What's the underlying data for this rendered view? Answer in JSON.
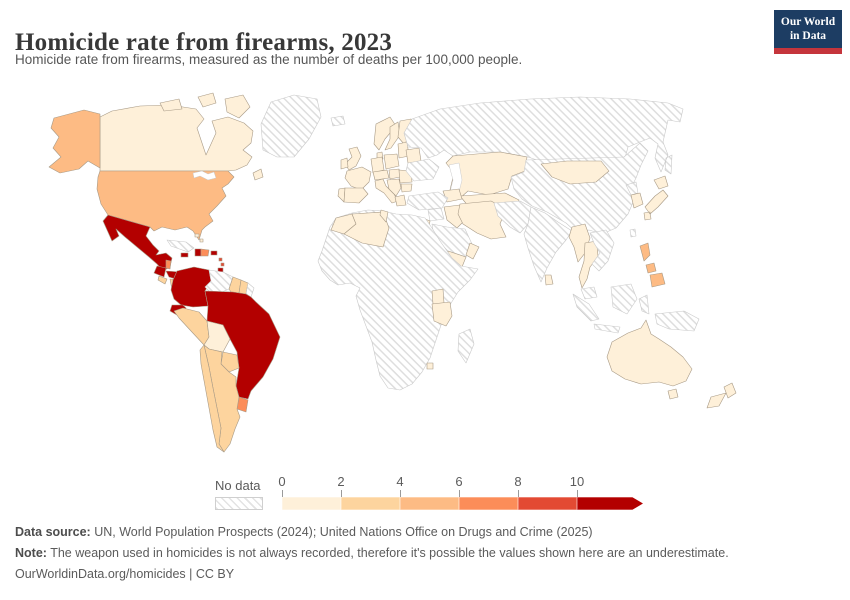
{
  "header": {
    "title": "Homicide rate from firearms, 2023",
    "subtitle": "Homicide rate from firearms, measured as the number of deaths per 100,000 people.",
    "logo": {
      "line1": "Our World",
      "line2": "in Data",
      "bg_color": "#1d3d63",
      "strip_color": "#c5353c"
    }
  },
  "legend": {
    "no_data_label": "No data",
    "ticks": [
      "0",
      "2",
      "4",
      "6",
      "8",
      "10"
    ]
  },
  "map": {
    "ocean_color": "#ffffff",
    "country_stroke": "#a89a86",
    "no_data_stroke": "#c9c9c9",
    "hatch_line_color": "#dedede"
  },
  "footer": {
    "source_label": "Data source:",
    "source_text": " UN, World Population Prospects (2024); United Nations Office on Drugs and Crime (2025)",
    "note_label": "Note:",
    "note_text": " The weapon used in homicides is not always recorded, therefore it's possible the values shown here are an underestimate.",
    "link_text": "OurWorldinData.org/homicides | CC BY"
  },
  "chart_data": {
    "type": "choropleth",
    "title": "Homicide rate from firearms, 2023",
    "unit": "deaths per 100,000 people",
    "year": 2023,
    "legend_range": [
      0,
      10
    ],
    "bins": [
      {
        "label": "0-2",
        "color": "#fef0d9"
      },
      {
        "label": "2-4",
        "color": "#fdd49e"
      },
      {
        "label": "4-6",
        "color": "#fdbb84"
      },
      {
        "label": "6-8",
        "color": "#fc8d59"
      },
      {
        "label": "8-10",
        "color": "#e34a33"
      },
      {
        "label": "10+",
        "color": "#b30000"
      }
    ],
    "no_data": {
      "label": "No data",
      "pattern": "diagonal-hatch"
    },
    "entities": [
      {
        "id": "canada",
        "name": "Canada",
        "bin": "0-2"
      },
      {
        "id": "canada-islands",
        "name": "Canada (Arctic islands)",
        "bin": "0-2"
      },
      {
        "id": "newfoundland",
        "name": "Canada (Newfoundland)",
        "bin": "0-2"
      },
      {
        "id": "alaska",
        "name": "United States (Alaska)",
        "bin": "4-6"
      },
      {
        "id": "united-states",
        "name": "United States",
        "bin": "4-6"
      },
      {
        "id": "greenland",
        "name": "Greenland",
        "bin": "no-data"
      },
      {
        "id": "iceland",
        "name": "Iceland",
        "bin": "no-data"
      },
      {
        "id": "mexico",
        "name": "Mexico",
        "bin": "10+"
      },
      {
        "id": "guatemala",
        "name": "Guatemala",
        "bin": "10+"
      },
      {
        "id": "belize",
        "name": "Belize",
        "bin": "6-8"
      },
      {
        "id": "honduras",
        "name": "Honduras",
        "bin": "10+"
      },
      {
        "id": "el-salvador",
        "name": "El Salvador",
        "bin": "2-4"
      },
      {
        "id": "nicaragua",
        "name": "Nicaragua",
        "bin": "2-4"
      },
      {
        "id": "costa-rica",
        "name": "Costa Rica",
        "bin": "8-10"
      },
      {
        "id": "panama",
        "name": "Panama",
        "bin": "10+"
      },
      {
        "id": "cuba",
        "name": "Cuba",
        "bin": "no-data"
      },
      {
        "id": "jamaica",
        "name": "Jamaica",
        "bin": "10+"
      },
      {
        "id": "haiti",
        "name": "Haiti",
        "bin": "10+"
      },
      {
        "id": "dominican-republic",
        "name": "Dominican Republic",
        "bin": "6-8"
      },
      {
        "id": "puerto-rico",
        "name": "Puerto Rico",
        "bin": "10+"
      },
      {
        "id": "bahamas",
        "name": "Bahamas",
        "bin": "0-2"
      },
      {
        "id": "lesser-antilles",
        "name": "Lesser Antilles",
        "bin": "8-10"
      },
      {
        "id": "trinidad-and-tobago",
        "name": "Trinidad and Tobago",
        "bin": "10+"
      },
      {
        "id": "colombia",
        "name": "Colombia",
        "bin": "10+"
      },
      {
        "id": "venezuela",
        "name": "Venezuela",
        "bin": "no-data"
      },
      {
        "id": "guyana",
        "name": "Guyana",
        "bin": "2-4"
      },
      {
        "id": "suriname",
        "name": "Suriname",
        "bin": "2-4"
      },
      {
        "id": "french-guiana",
        "name": "French Guiana",
        "bin": "no-data"
      },
      {
        "id": "ecuador",
        "name": "Ecuador",
        "bin": "10+"
      },
      {
        "id": "peru",
        "name": "Peru",
        "bin": "2-4"
      },
      {
        "id": "brazil",
        "name": "Brazil",
        "bin": "10+"
      },
      {
        "id": "bolivia",
        "name": "Bolivia",
        "bin": "0-2"
      },
      {
        "id": "paraguay",
        "name": "Paraguay",
        "bin": "2-4"
      },
      {
        "id": "uruguay",
        "name": "Uruguay",
        "bin": "6-8"
      },
      {
        "id": "argentina",
        "name": "Argentina",
        "bin": "2-4"
      },
      {
        "id": "chile",
        "name": "Chile",
        "bin": "2-4"
      },
      {
        "id": "united-kingdom",
        "name": "United Kingdom",
        "bin": "0-2"
      },
      {
        "id": "ireland",
        "name": "Ireland",
        "bin": "0-2"
      },
      {
        "id": "norway",
        "name": "Norway",
        "bin": "0-2"
      },
      {
        "id": "sweden",
        "name": "Sweden",
        "bin": "0-2"
      },
      {
        "id": "finland",
        "name": "Finland",
        "bin": "0-2"
      },
      {
        "id": "denmark",
        "name": "Denmark",
        "bin": "0-2"
      },
      {
        "id": "france",
        "name": "France",
        "bin": "0-2"
      },
      {
        "id": "spain",
        "name": "Spain",
        "bin": "0-2"
      },
      {
        "id": "portugal",
        "name": "Portugal",
        "bin": "0-2"
      },
      {
        "id": "germany",
        "name": "Germany",
        "bin": "0-2"
      },
      {
        "id": "poland",
        "name": "Poland",
        "bin": "0-2"
      },
      {
        "id": "baltic-states",
        "name": "Baltic states",
        "bin": "0-2"
      },
      {
        "id": "belarus",
        "name": "Belarus",
        "bin": "0-2"
      },
      {
        "id": "ukraine",
        "name": "Ukraine",
        "bin": "no-data"
      },
      {
        "id": "austria-czechia",
        "name": "Austria/Czechia",
        "bin": "0-2"
      },
      {
        "id": "hungary-slovakia",
        "name": "Hungary/Slovakia",
        "bin": "0-2"
      },
      {
        "id": "romania",
        "name": "Romania",
        "bin": "0-2"
      },
      {
        "id": "bulgaria",
        "name": "Bulgaria",
        "bin": "0-2"
      },
      {
        "id": "western-balkans",
        "name": "Western Balkans",
        "bin": "0-2"
      },
      {
        "id": "greece",
        "name": "Greece",
        "bin": "0-2"
      },
      {
        "id": "italy",
        "name": "Italy",
        "bin": "0-2"
      },
      {
        "id": "russia",
        "name": "Russia",
        "bin": "no-data"
      },
      {
        "id": "kazakhstan",
        "name": "Kazakhstan",
        "bin": "0-2"
      },
      {
        "id": "central-asia",
        "name": "Central Asia",
        "bin": "0-2"
      },
      {
        "id": "caucasus",
        "name": "Caucasus",
        "bin": "0-2"
      },
      {
        "id": "turkey",
        "name": "Turkey",
        "bin": "no-data"
      },
      {
        "id": "syria-levant",
        "name": "Syria",
        "bin": "no-data"
      },
      {
        "id": "israel-jordan",
        "name": "Israel/Jordan",
        "bin": "0-2"
      },
      {
        "id": "iraq",
        "name": "Iraq",
        "bin": "0-2"
      },
      {
        "id": "iran",
        "name": "Iran",
        "bin": "0-2"
      },
      {
        "id": "saudi-arabia",
        "name": "Saudi Arabia",
        "bin": "no-data"
      },
      {
        "id": "yemen",
        "name": "Yemen",
        "bin": "0-2"
      },
      {
        "id": "oman",
        "name": "Oman",
        "bin": "0-2"
      },
      {
        "id": "afghanistan-pakistan",
        "name": "Afghanistan/Pakistan",
        "bin": "no-data"
      },
      {
        "id": "india",
        "name": "India",
        "bin": "no-data"
      },
      {
        "id": "sri-lanka",
        "name": "Sri Lanka",
        "bin": "0-2"
      },
      {
        "id": "china",
        "name": "China",
        "bin": "no-data"
      },
      {
        "id": "taiwan",
        "name": "Taiwan",
        "bin": "no-data"
      },
      {
        "id": "mongolia",
        "name": "Mongolia",
        "bin": "0-2"
      },
      {
        "id": "north-korea",
        "name": "North Korea",
        "bin": "no-data"
      },
      {
        "id": "south-korea",
        "name": "South Korea",
        "bin": "0-2"
      },
      {
        "id": "japan",
        "name": "Japan",
        "bin": "0-2"
      },
      {
        "id": "myanmar",
        "name": "Myanmar",
        "bin": "0-2"
      },
      {
        "id": "thailand",
        "name": "Thailand",
        "bin": "0-2"
      },
      {
        "id": "indochina",
        "name": "Vietnam/Laos/Cambodia",
        "bin": "no-data"
      },
      {
        "id": "malaysia",
        "name": "Malaysia",
        "bin": "no-data"
      },
      {
        "id": "indonesia",
        "name": "Indonesia",
        "bin": "no-data"
      },
      {
        "id": "papua-new-guinea",
        "name": "Papua New Guinea",
        "bin": "no-data"
      },
      {
        "id": "philippines",
        "name": "Philippines",
        "bin": "4-6"
      },
      {
        "id": "africa-base",
        "name": "Africa (most countries)",
        "bin": "no-data"
      },
      {
        "id": "morocco",
        "name": "Morocco",
        "bin": "0-2"
      },
      {
        "id": "algeria",
        "name": "Algeria",
        "bin": "0-2"
      },
      {
        "id": "tunisia",
        "name": "Tunisia",
        "bin": "0-2"
      },
      {
        "id": "uganda",
        "name": "Uganda",
        "bin": "0-2"
      },
      {
        "id": "tanzania",
        "name": "Tanzania",
        "bin": "0-2"
      },
      {
        "id": "lesotho",
        "name": "Lesotho",
        "bin": "0-2"
      },
      {
        "id": "madagascar",
        "name": "Madagascar",
        "bin": "no-data"
      },
      {
        "id": "australia",
        "name": "Australia",
        "bin": "0-2"
      },
      {
        "id": "tasmania",
        "name": "Australia (Tasmania)",
        "bin": "0-2"
      },
      {
        "id": "new-zealand",
        "name": "New Zealand",
        "bin": "0-2"
      }
    ]
  }
}
